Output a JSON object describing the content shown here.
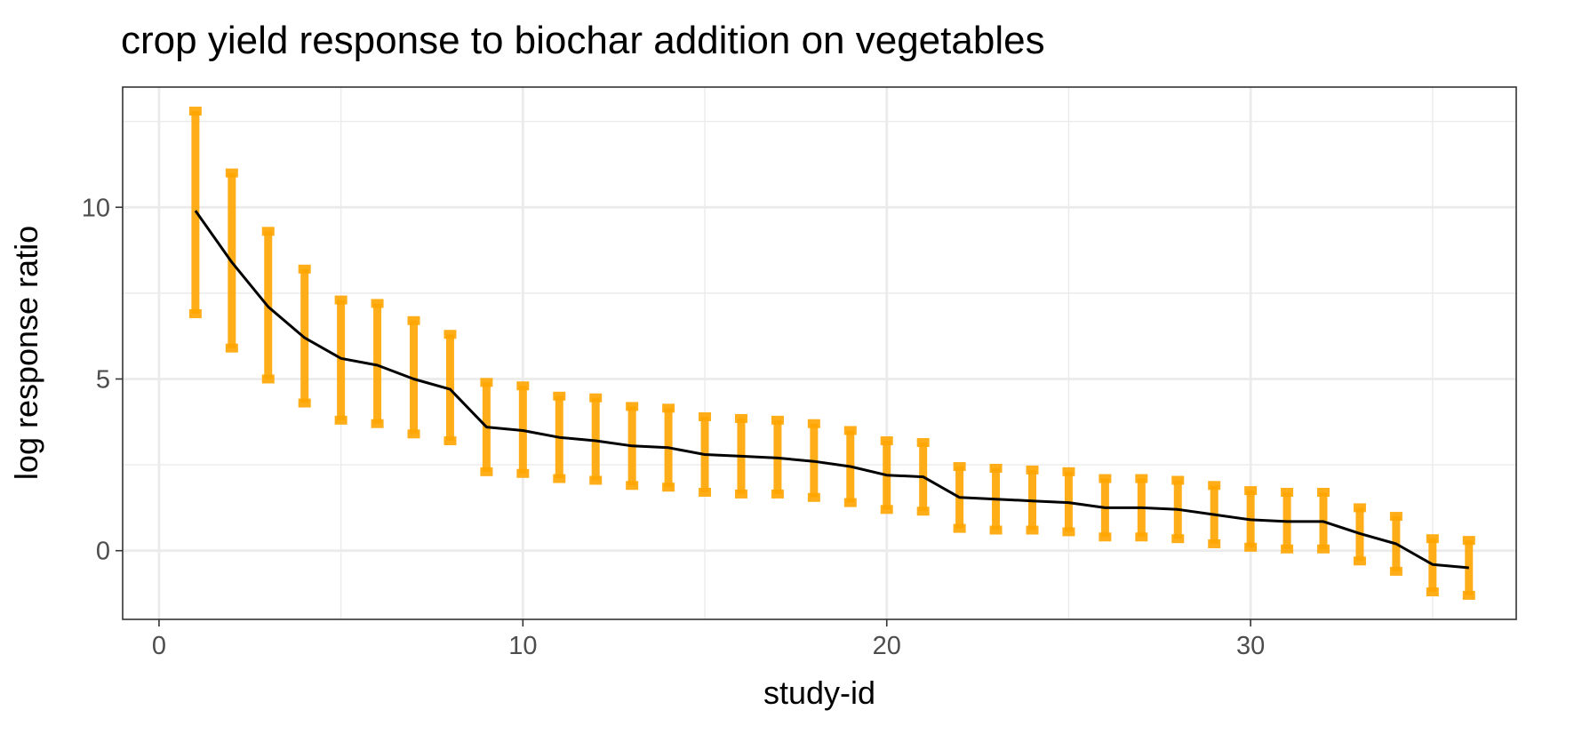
{
  "chart_data": {
    "type": "line",
    "title": "crop yield response to biochar addition on vegetables",
    "xlabel": "study-id",
    "ylabel": "log response ratio",
    "xlim": [
      -1,
      37.3
    ],
    "ylim": [
      -2,
      13.5
    ],
    "x_ticks": [
      0,
      10,
      20,
      30
    ],
    "y_ticks": [
      0,
      5,
      10
    ],
    "x_minor_ticks": [
      5,
      15,
      25,
      35
    ],
    "y_minor_ticks": [
      -2.5,
      2.5,
      7.5,
      12.5
    ],
    "grid": true,
    "colors": {
      "line": "#000000",
      "error_bar": "#FFA500",
      "grid": "#ebebeb",
      "panel_border": "#333333"
    },
    "series": [
      {
        "type": "line",
        "x": [
          1,
          2,
          3,
          4,
          5,
          6,
          7,
          8,
          9,
          10,
          11,
          12,
          13,
          14,
          15,
          16,
          17,
          18,
          19,
          20,
          21,
          22,
          23,
          24,
          25,
          26,
          27,
          28,
          29,
          30,
          31,
          32,
          33,
          34,
          35,
          36
        ],
        "y": [
          9.9,
          8.4,
          7.1,
          6.2,
          5.6,
          5.4,
          5.0,
          4.7,
          3.6,
          3.5,
          3.3,
          3.2,
          3.05,
          3.0,
          2.8,
          2.75,
          2.7,
          2.6,
          2.45,
          2.2,
          2.15,
          1.55,
          1.5,
          1.45,
          1.4,
          1.25,
          1.25,
          1.2,
          1.05,
          0.9,
          0.85,
          0.85,
          0.5,
          0.2,
          -0.4,
          -0.5
        ]
      },
      {
        "type": "errorbar",
        "x": [
          1,
          2,
          3,
          4,
          5,
          6,
          7,
          8,
          9,
          10,
          11,
          12,
          13,
          14,
          15,
          16,
          17,
          18,
          19,
          20,
          21,
          22,
          23,
          24,
          25,
          26,
          27,
          28,
          29,
          30,
          31,
          32,
          33,
          34,
          35,
          36
        ],
        "ymin": [
          6.9,
          5.9,
          5.0,
          4.3,
          3.8,
          3.7,
          3.4,
          3.2,
          2.3,
          2.25,
          2.1,
          2.05,
          1.9,
          1.85,
          1.7,
          1.65,
          1.65,
          1.55,
          1.4,
          1.2,
          1.15,
          0.65,
          0.6,
          0.6,
          0.55,
          0.4,
          0.4,
          0.35,
          0.2,
          0.1,
          0.05,
          0.05,
          -0.3,
          -0.6,
          -1.2,
          -1.3
        ],
        "ymax": [
          12.8,
          11.0,
          9.3,
          8.2,
          7.3,
          7.2,
          6.7,
          6.3,
          4.9,
          4.8,
          4.5,
          4.45,
          4.2,
          4.15,
          3.9,
          3.85,
          3.8,
          3.7,
          3.5,
          3.2,
          3.15,
          2.45,
          2.4,
          2.35,
          2.3,
          2.1,
          2.1,
          2.05,
          1.9,
          1.75,
          1.7,
          1.7,
          1.25,
          1.0,
          0.35,
          0.3
        ]
      }
    ]
  }
}
